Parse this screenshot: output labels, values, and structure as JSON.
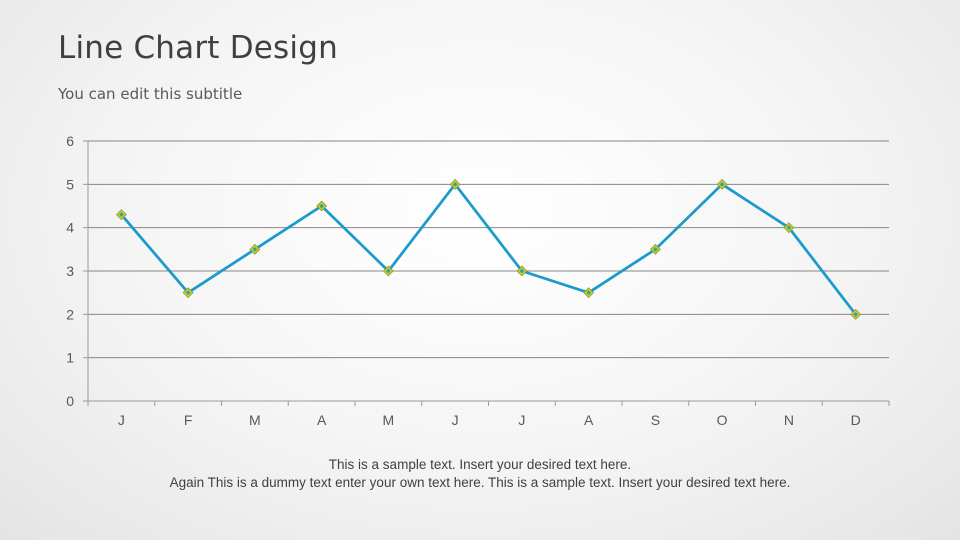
{
  "slide": {
    "title": "Line Chart Design",
    "subtitle": "You can edit this subtitle",
    "caption_line1": "This is a sample text. Insert your desired text here.",
    "caption_line2": "Again This is a dummy text enter your own text here. This is a sample text. Insert your desired text here."
  },
  "chart_data": {
    "type": "line",
    "categories": [
      "J",
      "F",
      "M",
      "A",
      "M",
      "J",
      "J",
      "A",
      "S",
      "O",
      "N",
      "D"
    ],
    "series": [
      {
        "values": [
          4.3,
          2.5,
          3.5,
          4.5,
          3,
          5,
          3,
          2.5,
          3.5,
          5,
          4,
          2
        ]
      }
    ],
    "yticks": [
      0,
      1,
      2,
      3,
      4,
      5,
      6
    ],
    "ylim": [
      0,
      6
    ],
    "grid": true,
    "line_color": "#1b9bc9",
    "marker_fill": "#c4c832",
    "marker_accent": "#2aa6a0",
    "gridline_color": "#878787",
    "axis_color": "#9a9a9a",
    "label_color": "#595959",
    "legend": "none"
  }
}
